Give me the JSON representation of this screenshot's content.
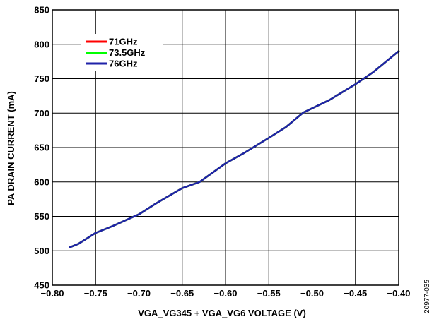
{
  "chart_data": {
    "type": "line",
    "xlabel": "VGA_VG345 + VGA_VG6 VOLTAGE (V)",
    "ylabel": "PA DRAIN CURRENT (mA)",
    "xlim": [
      -0.8,
      -0.4
    ],
    "ylim": [
      450,
      850
    ],
    "x_ticks": [
      -0.8,
      -0.75,
      -0.7,
      -0.65,
      -0.6,
      -0.55,
      -0.5,
      -0.45,
      -0.4
    ],
    "x_tick_labels": [
      "−0.80",
      "−0.75",
      "−0.70",
      "−0.65",
      "−0.60",
      "−0.55",
      "−0.50",
      "−0.45",
      "−0.40"
    ],
    "y_ticks": [
      450,
      500,
      550,
      600,
      650,
      700,
      750,
      800,
      850
    ],
    "y_tick_labels": [
      "450",
      "500",
      "550",
      "600",
      "650",
      "700",
      "750",
      "800",
      "850"
    ],
    "grid": true,
    "legend_position": "top-left",
    "series": [
      {
        "name": "71GHz",
        "color": "#ff0000",
        "x": [
          -0.78,
          -0.77,
          -0.75,
          -0.73,
          -0.7,
          -0.68,
          -0.65,
          -0.63,
          -0.6,
          -0.58,
          -0.55,
          -0.53,
          -0.51,
          -0.48,
          -0.45,
          -0.43,
          -0.4
        ],
        "y": [
          505,
          510,
          526,
          536,
          553,
          569,
          591,
          600,
          627,
          641,
          664,
          680,
          701,
          719,
          742,
          759,
          790
        ]
      },
      {
        "name": "73.5GHz",
        "color": "#00ff00",
        "x": [
          -0.78,
          -0.77,
          -0.75,
          -0.73,
          -0.7,
          -0.68,
          -0.65,
          -0.63,
          -0.6,
          -0.58,
          -0.55,
          -0.53,
          -0.51,
          -0.48,
          -0.45,
          -0.43,
          -0.4
        ],
        "y": [
          505,
          510,
          526,
          536,
          553,
          569,
          591,
          600,
          627,
          641,
          664,
          680,
          701,
          719,
          742,
          759,
          790
        ]
      },
      {
        "name": "76GHz",
        "color": "#1f22a8",
        "x": [
          -0.78,
          -0.77,
          -0.75,
          -0.73,
          -0.7,
          -0.68,
          -0.65,
          -0.63,
          -0.6,
          -0.58,
          -0.55,
          -0.53,
          -0.51,
          -0.48,
          -0.45,
          -0.43,
          -0.4
        ],
        "y": [
          505,
          510,
          526,
          536,
          553,
          569,
          591,
          600,
          627,
          641,
          664,
          680,
          701,
          719,
          742,
          759,
          790
        ]
      }
    ]
  },
  "figure_id": "20977-035"
}
